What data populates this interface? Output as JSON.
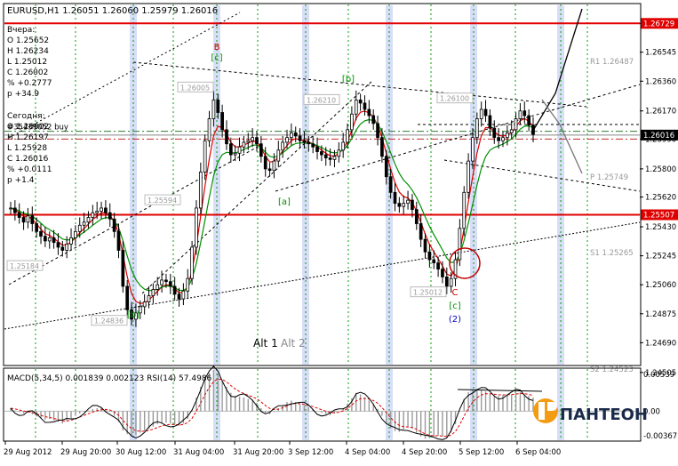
{
  "window": {
    "symbol_line": "EURUSD,H1  1.26051 1.26060 1.25979 1.26016"
  },
  "info_box": {
    "yesterday": [
      "Вчера:",
      "O  1.25652",
      "H  1.26234",
      "L  1.25012",
      "C  1.26002",
      "%  +0.2777",
      "p  +34.9"
    ],
    "today": [
      "Сегодня:",
      "O  1.26002",
      "H  1.26197",
      "L  1.25928",
      "C  1.26016",
      "%  +0.0111",
      "p  +1.4"
    ]
  },
  "logo": {
    "text": "ПАНТЕОН",
    "color": "#f39c12"
  },
  "colors": {
    "frame": "#000000",
    "grid_green": "#00a000",
    "red_level": "#e00000",
    "blue_band": "#d8def8",
    "ma_red": "#e00000",
    "ma_green": "#009000",
    "macd_signal": "#e00000"
  },
  "chart_data": [
    {
      "type": "candlestick",
      "symbol": "EURUSD",
      "timeframe": "H1",
      "ylim": [
        1.2455,
        1.2685
      ],
      "yticks": [
        1.26729,
        1.26545,
        1.2636,
        1.2617,
        1.2599,
        1.258,
        1.2562,
        1.2543,
        1.25245,
        1.2506,
        1.24875,
        1.2469,
        1.245
      ],
      "ytick_labels": [
        "1.26729",
        "1.26545",
        "1.26360",
        "1.26170",
        "1.25990",
        "1.25800",
        "1.25620",
        "1.25430",
        "1.25245",
        "1.25060",
        "1.24875",
        "1.24690",
        "1.24505"
      ],
      "xtick_labels": [
        "29 Aug 2012",
        "29 Aug 20:00",
        "30 Aug 12:00",
        "31 Aug 04:00",
        "31 Aug 20:00",
        "3 Sep 12:00",
        "4 Sep 04:00",
        "4 Sep 20:00",
        "5 Sep 12:00",
        "6 Sep 04:00"
      ],
      "current_price": 1.26016,
      "price_line_label": "1.26016",
      "levels": [
        {
          "price": 1.26729,
          "label": "1.26729"
        },
        {
          "price": 1.25507,
          "label": "1.25507"
        }
      ],
      "dashed_levels": [
        {
          "price": 1.2604,
          "color": "#2e7d32",
          "label": "#35439052 buy"
        },
        {
          "price": 1.2599,
          "color": "#c62828",
          "label": ""
        }
      ],
      "pivot_labels": [
        {
          "text": "R1  1.26487",
          "price": 1.26487
        },
        {
          "text": "P  1.25749",
          "price": 1.25749
        },
        {
          "text": "S1  1.25265",
          "price": 1.25265
        },
        {
          "text": "S2  1.24523",
          "price": 1.24523
        }
      ],
      "price_boxes": [
        {
          "text": "1.26005",
          "price": 1.2632
        },
        {
          "text": "1.26210",
          "price": 1.2624
        },
        {
          "text": "1.25594",
          "price": 1.256
        },
        {
          "text": "1.25184",
          "price": 1.2518
        },
        {
          "text": "1.24836",
          "price": 1.2483
        },
        {
          "text": "1.25012",
          "price": 1.25012
        },
        {
          "text": "1.26100",
          "price": 1.2625
        }
      ],
      "wave_labels": [
        {
          "text": "B",
          "color": "#d00000"
        },
        {
          "text": "[c]",
          "color": "#009000"
        },
        {
          "text": "[b]",
          "color": "#009000"
        },
        {
          "text": "[a]",
          "color": "#009000"
        },
        {
          "text": "[b]",
          "color": "#009000"
        },
        {
          "text": "C",
          "color": "#d00000"
        },
        {
          "text": "[c]",
          "color": "#009000"
        },
        {
          "text": "(2)",
          "color": "#0000c0"
        }
      ],
      "alt_labels": {
        "alt1": "Alt 1",
        "alt2": "Alt 2"
      },
      "close": [
        1.2555,
        1.2552,
        1.2549,
        1.2546,
        1.255,
        1.2545,
        1.254,
        1.2537,
        1.2534,
        1.2536,
        1.2533,
        1.253,
        1.2528,
        1.2532,
        1.2536,
        1.254,
        1.2544,
        1.2546,
        1.2549,
        1.2552,
        1.2553,
        1.2555,
        1.2552,
        1.2548,
        1.254,
        1.2528,
        1.2505,
        1.249,
        1.2484,
        1.2488,
        1.2492,
        1.2495,
        1.2499,
        1.2503,
        1.2506,
        1.2509,
        1.2508,
        1.2505,
        1.25,
        1.2497,
        1.2502,
        1.251,
        1.253,
        1.2555,
        1.2578,
        1.2598,
        1.2612,
        1.2624,
        1.2616,
        1.2605,
        1.2596,
        1.2589,
        1.259,
        1.2594,
        1.2597,
        1.2598,
        1.26,
        1.2596,
        1.2588,
        1.258,
        1.2579,
        1.2585,
        1.2592,
        1.2597,
        1.26,
        1.2603,
        1.2601,
        1.2598,
        1.2597,
        1.2596,
        1.2594,
        1.2591,
        1.2589,
        1.2587,
        1.2586,
        1.2588,
        1.2592,
        1.2597,
        1.2605,
        1.2615,
        1.2624,
        1.2622,
        1.2618,
        1.2614,
        1.2609,
        1.26,
        1.2588,
        1.2575,
        1.2565,
        1.2558,
        1.2556,
        1.2558,
        1.256,
        1.2554,
        1.2545,
        1.2535,
        1.2527,
        1.2522,
        1.252,
        1.2516,
        1.2511,
        1.2505,
        1.251,
        1.2522,
        1.2542,
        1.2565,
        1.2585,
        1.26,
        1.2612,
        1.2618,
        1.2614,
        1.2606,
        1.26,
        1.2598,
        1.26,
        1.2603,
        1.2605,
        1.2612,
        1.2617,
        1.2614,
        1.2608,
        1.2602
      ]
    },
    {
      "type": "line",
      "title": "MACD(5,34,5) 0.001839 0.002123  RSI(14) 57.4986",
      "ylim": [
        -0.00367,
        0.00539
      ],
      "ytick_labels": [
        "0.00539",
        "0.00",
        "-0.00367"
      ],
      "series": [
        {
          "name": "MACD",
          "values": [
            0.0004,
            0.0001,
            -0.0001,
            -0.0003,
            -0.0002,
            -0.0004,
            -0.0007,
            -0.0009,
            -0.0011,
            -0.001,
            -0.0012,
            -0.0014,
            -0.0016,
            -0.0013,
            -0.001,
            -0.0006,
            -0.0003,
            -0.0001,
            0.0001,
            0.0003,
            0.0004,
            0.0005,
            0.0003,
            0.0,
            -0.0006,
            -0.0014,
            -0.0025,
            -0.003,
            -0.0032,
            -0.0031,
            -0.0028,
            -0.0026,
            -0.0023,
            -0.002,
            -0.0017,
            -0.0015,
            -0.0015,
            -0.0016,
            -0.0018,
            -0.0019,
            -0.0016,
            -0.001,
            0.0002,
            0.0018,
            0.0032,
            0.0044,
            0.005,
            0.0054,
            0.0049,
            0.004,
            0.0032,
            0.0024,
            0.002,
            0.0019,
            0.0018,
            0.0016,
            0.0015,
            0.0011,
            0.0004,
            -0.0002,
            -0.0004,
            -0.0001,
            0.0004,
            0.0008,
            0.0012,
            0.0014,
            0.0012,
            0.0009,
            0.0007,
            0.0005,
            0.0003,
            0.0,
            -0.0002,
            -0.0004,
            -0.0005,
            -0.0003,
            0.0,
            0.0004,
            0.001,
            0.0017,
            0.0024,
            0.0022,
            0.0018,
            0.0014,
            0.001,
            0.0003,
            -0.0006,
            -0.0015,
            -0.0022,
            -0.0026,
            -0.0027,
            -0.0024,
            -0.0021,
            -0.0023,
            -0.0028,
            -0.0033,
            -0.0036,
            -0.0035,
            -0.0033,
            -0.0032,
            -0.0033,
            -0.0034,
            -0.0028,
            -0.0017,
            0.0,
            0.0016,
            0.0025,
            0.0028,
            0.0029,
            0.0028,
            0.0026,
            0.0023,
            0.0021,
            0.002,
            0.0021,
            0.0022,
            0.0022,
            0.0024,
            0.0025,
            0.0022,
            0.002,
            0.0018
          ]
        }
      ]
    }
  ]
}
